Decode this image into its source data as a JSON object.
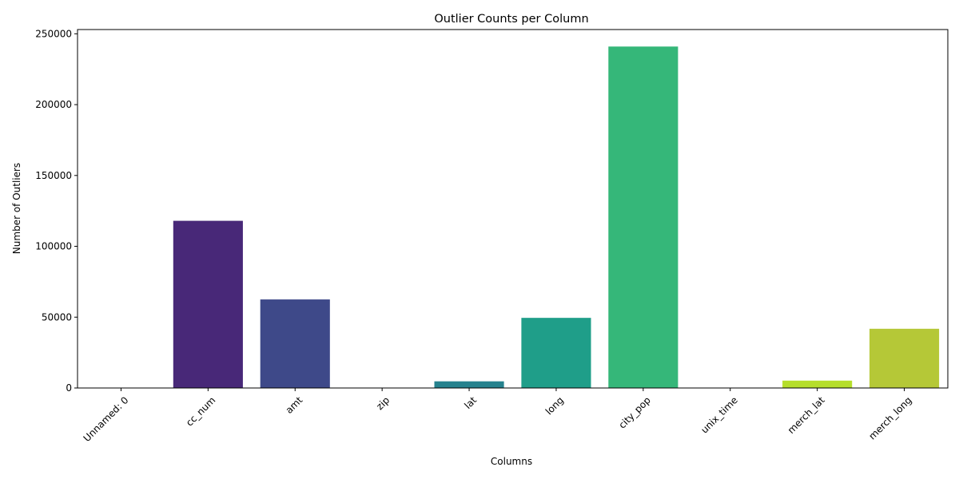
{
  "chart_data": {
    "type": "bar",
    "title": "Outlier Counts per Column",
    "xlabel": "Columns",
    "ylabel": "Number of Outliers",
    "categories": [
      "Unnamed: 0",
      "cc_num",
      "amt",
      "zip",
      "lat",
      "long",
      "city_pop",
      "unix_time",
      "merch_lat",
      "merch_long"
    ],
    "values": [
      0,
      118000,
      62500,
      0,
      4700,
      49500,
      241000,
      0,
      5200,
      41800
    ],
    "colors": [
      "#440154",
      "#482878",
      "#3e4989",
      "#31688e",
      "#26828e",
      "#1f9e89",
      "#35b779",
      "#6ece58",
      "#b5de2b",
      "#b5c837"
    ],
    "yticks": [
      0,
      50000,
      100000,
      150000,
      200000,
      250000
    ],
    "ylim": [
      0,
      253000
    ],
    "grid": false,
    "legend": false
  }
}
